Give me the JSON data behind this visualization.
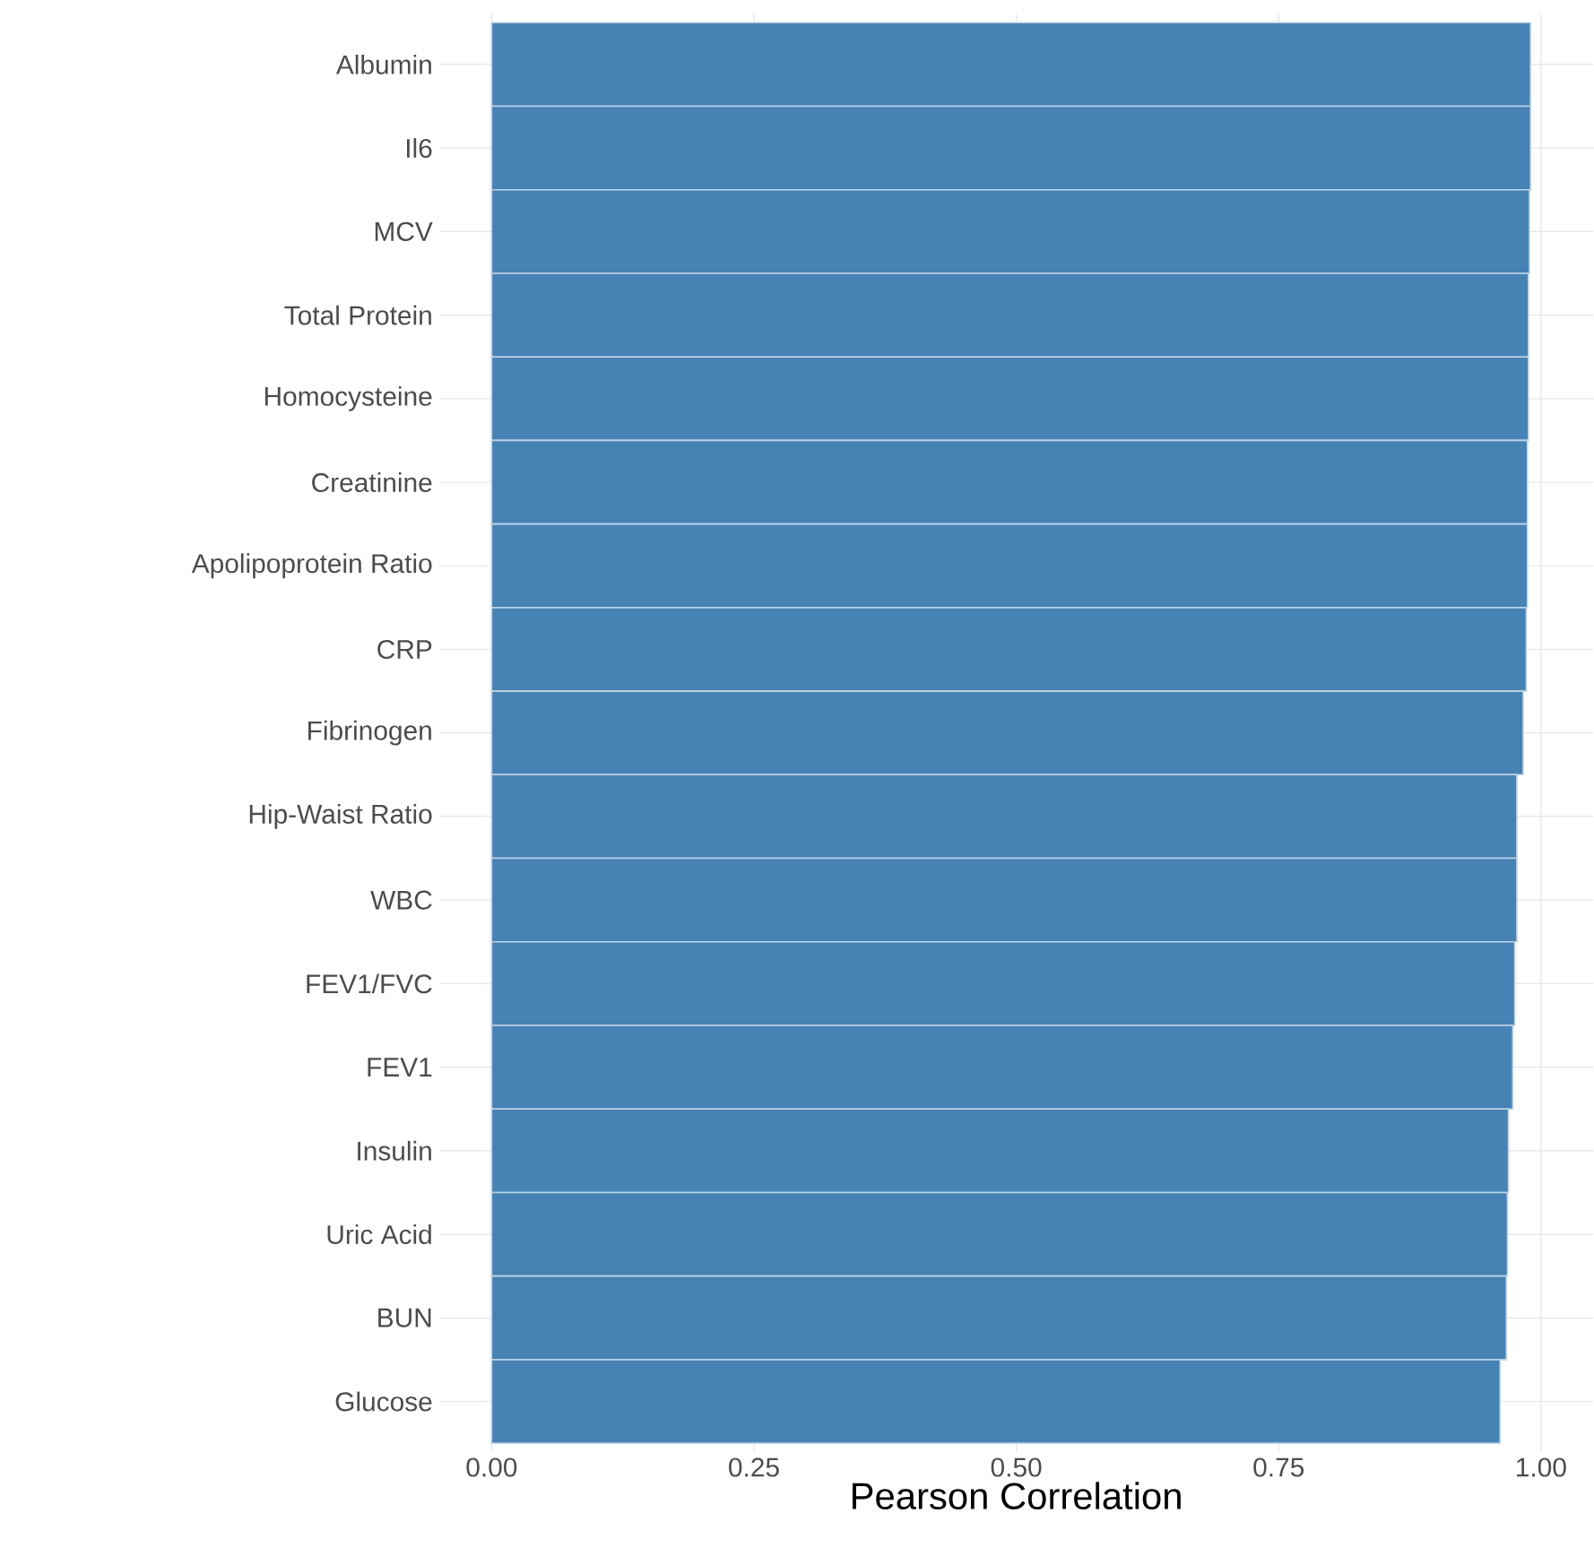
{
  "chart_data": {
    "type": "bar",
    "orientation": "horizontal",
    "categories": [
      "Albumin",
      "Il6",
      "MCV",
      "Total Protein",
      "Homocysteine",
      "Creatinine",
      "Apolipoprotein Ratio",
      "CRP",
      "Fibrinogen",
      "Hip-Waist Ratio",
      "WBC",
      "FEV1/FVC",
      "FEV1",
      "Insulin",
      "Uric Acid",
      "BUN",
      "Glucose"
    ],
    "values": [
      0.99,
      0.99,
      0.989,
      0.988,
      0.988,
      0.987,
      0.987,
      0.986,
      0.983,
      0.977,
      0.977,
      0.975,
      0.973,
      0.969,
      0.968,
      0.967,
      0.961
    ],
    "color": "#4682b4",
    "xlabel": "Pearson Correlation",
    "xlim": [
      -0.05,
      1.05
    ],
    "xticks": [
      {
        "value": 0,
        "label": "0.00"
      },
      {
        "value": 0.25,
        "label": "0.25"
      },
      {
        "value": 0.5,
        "label": "0.50"
      },
      {
        "value": 0.75,
        "label": "0.75"
      },
      {
        "value": 1,
        "label": "1.00"
      }
    ],
    "grid": true
  }
}
